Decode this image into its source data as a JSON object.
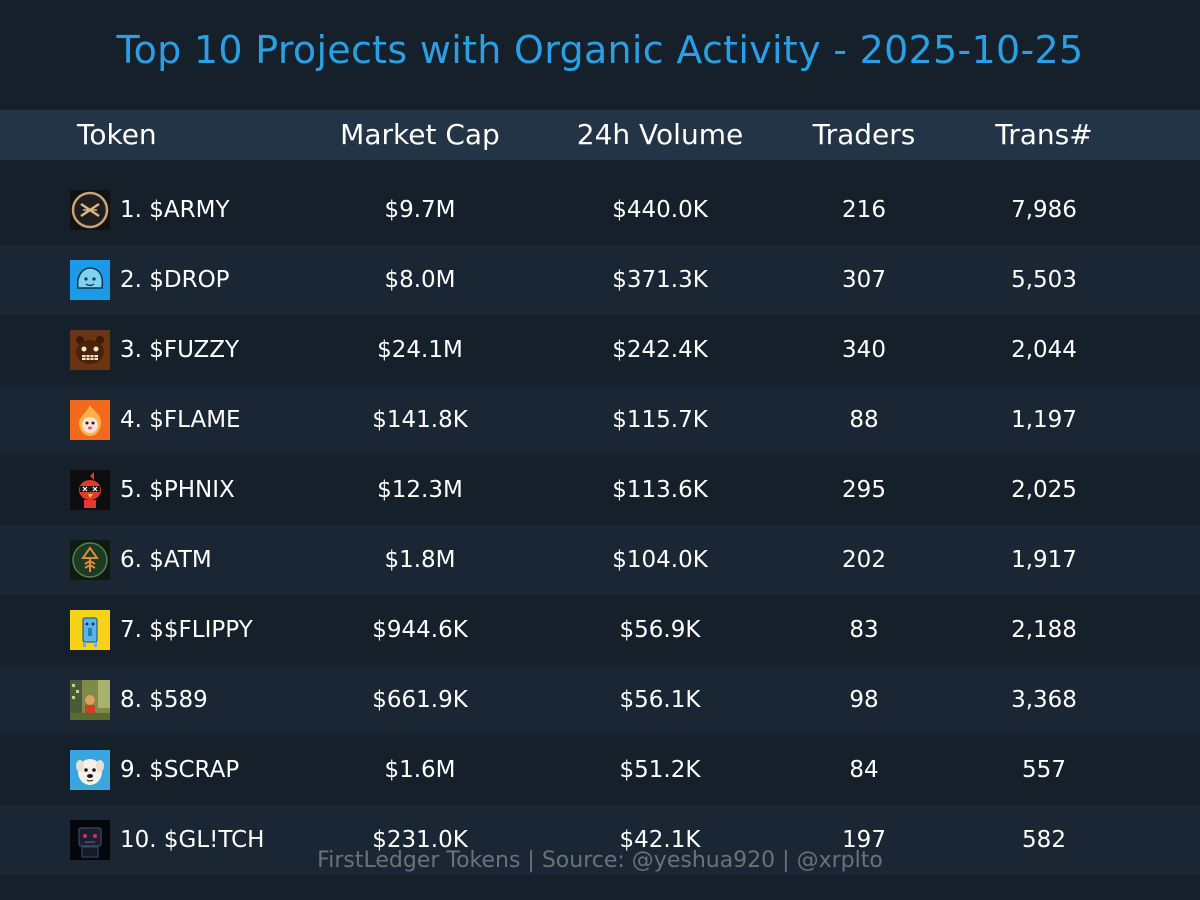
{
  "title": "Top 10 Projects with Organic Activity - 2025-10-25",
  "footer": "FirstLedger Tokens | Source: @yeshua920 | @xrplto",
  "colors": {
    "background": "#16202b",
    "header_bg": "#223445",
    "row_alt_bg": "#1a2634",
    "title": "#2a9fe6",
    "footer": "#6b7178"
  },
  "chart_data": {
    "type": "table",
    "columns": [
      "Token",
      "Market Cap",
      "24h Volume",
      "Traders",
      "Trans#"
    ],
    "rows": [
      {
        "token": "1. $ARMY",
        "icon": "army-logo-icon",
        "market_cap": "$9.7M",
        "volume_24h": "$440.0K",
        "traders": "216",
        "transactions": "7,986"
      },
      {
        "token": "2. $DROP",
        "icon": "drop-logo-icon",
        "market_cap": "$8.0M",
        "volume_24h": "$371.3K",
        "traders": "307",
        "transactions": "5,503"
      },
      {
        "token": "3. $FUZZY",
        "icon": "fuzzy-logo-icon",
        "market_cap": "$24.1M",
        "volume_24h": "$242.4K",
        "traders": "340",
        "transactions": "2,044"
      },
      {
        "token": "4. $FLAME",
        "icon": "flame-logo-icon",
        "market_cap": "$141.8K",
        "volume_24h": "$115.7K",
        "traders": "88",
        "transactions": "1,197"
      },
      {
        "token": "5. $PHNIX",
        "icon": "phnix-logo-icon",
        "market_cap": "$12.3M",
        "volume_24h": "$113.6K",
        "traders": "295",
        "transactions": "2,025"
      },
      {
        "token": "6. $ATM",
        "icon": "atm-logo-icon",
        "market_cap": "$1.8M",
        "volume_24h": "$104.0K",
        "traders": "202",
        "transactions": "1,917"
      },
      {
        "token": "7. $$FLIPPY",
        "icon": "flippy-logo-icon",
        "market_cap": "$944.6K",
        "volume_24h": "$56.9K",
        "traders": "83",
        "transactions": "2,188"
      },
      {
        "token": "8. $589",
        "icon": "589-logo-icon",
        "market_cap": "$661.9K",
        "volume_24h": "$56.1K",
        "traders": "98",
        "transactions": "3,368"
      },
      {
        "token": "9. $SCRAP",
        "icon": "scrap-logo-icon",
        "market_cap": "$1.6M",
        "volume_24h": "$51.2K",
        "traders": "84",
        "transactions": "557"
      },
      {
        "token": "10. $GL!TCH",
        "icon": "glitch-logo-icon",
        "market_cap": "$231.0K",
        "volume_24h": "$42.1K",
        "traders": "197",
        "transactions": "582"
      }
    ]
  }
}
